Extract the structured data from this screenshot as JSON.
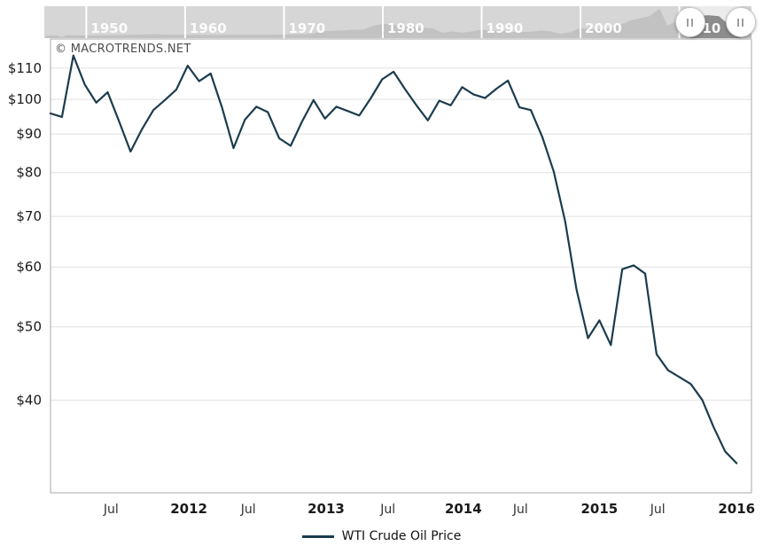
{
  "branding": {
    "copyright": "© MACROTRENDS.NET"
  },
  "legend": {
    "label": "WTI Crude Oil Price"
  },
  "colors": {
    "line": "#1c3c4e",
    "grid": "#e0e0e0",
    "plot_border": "#a8a8a8",
    "tick_label": "#1a1a1a",
    "secondary_tick_label": "#333333",
    "timeline_track": "#d6d6d6",
    "timeline_fill": "#c2c2c2",
    "timeline_selected_bg": "#ececec",
    "timeline_selected_fill": "#8c8c8c",
    "timeline_separator": "#ffffff",
    "timeline_label": "#ffffff",
    "handle_grip": "#9e9e9e"
  },
  "timeline": {
    "axis": {
      "start_year": 1945.75,
      "end_year": 2017.3
    },
    "decades": [
      {
        "label": "1950",
        "year": 1950
      },
      {
        "label": "1960",
        "year": 1960
      },
      {
        "label": "1970",
        "year": 1970
      },
      {
        "label": "1980",
        "year": 1980
      },
      {
        "label": "1990",
        "year": 1990
      },
      {
        "label": "2000",
        "year": 2000
      },
      {
        "label": "2010",
        "year": 2010
      }
    ],
    "selection": {
      "start_year": 2011.08,
      "end_year": 2016.2
    },
    "sparkline": [
      [
        1946,
        0.08
      ],
      [
        1947,
        0.09
      ],
      [
        1947.6,
        0.03
      ],
      [
        1948,
        0.1
      ],
      [
        1949,
        0.09
      ],
      [
        1950,
        0.09
      ],
      [
        1952,
        0.1
      ],
      [
        1954,
        0.11
      ],
      [
        1957,
        0.13
      ],
      [
        1959,
        0.11
      ],
      [
        1962,
        0.11
      ],
      [
        1965,
        0.11
      ],
      [
        1968,
        0.11
      ],
      [
        1970,
        0.12
      ],
      [
        1972,
        0.13
      ],
      [
        1973,
        0.16
      ],
      [
        1974,
        0.23
      ],
      [
        1975,
        0.24
      ],
      [
        1976,
        0.26
      ],
      [
        1977,
        0.28
      ],
      [
        1978,
        0.28
      ],
      [
        1979,
        0.4
      ],
      [
        1980,
        0.48
      ],
      [
        1981,
        0.45
      ],
      [
        1982,
        0.4
      ],
      [
        1983,
        0.36
      ],
      [
        1984,
        0.34
      ],
      [
        1985,
        0.33
      ],
      [
        1986,
        0.18
      ],
      [
        1987,
        0.22
      ],
      [
        1988,
        0.18
      ],
      [
        1989,
        0.22
      ],
      [
        1990,
        0.28
      ],
      [
        1991,
        0.24
      ],
      [
        1992,
        0.24
      ],
      [
        1993,
        0.21
      ],
      [
        1994,
        0.2
      ],
      [
        1995,
        0.21
      ],
      [
        1996,
        0.25
      ],
      [
        1997,
        0.23
      ],
      [
        1998,
        0.14
      ],
      [
        1999,
        0.2
      ],
      [
        2000,
        0.34
      ],
      [
        2001,
        0.29
      ],
      [
        2002,
        0.29
      ],
      [
        2003,
        0.34
      ],
      [
        2004,
        0.44
      ],
      [
        2005,
        0.58
      ],
      [
        2006,
        0.66
      ],
      [
        2007,
        0.73
      ],
      [
        2008,
        0.98
      ],
      [
        2008.8,
        0.42
      ],
      [
        2009,
        0.45
      ],
      [
        2010,
        0.62
      ],
      [
        2011,
        0.78
      ],
      [
        2012,
        0.74
      ],
      [
        2013,
        0.76
      ],
      [
        2014,
        0.73
      ],
      [
        2014.8,
        0.5
      ],
      [
        2015,
        0.4
      ],
      [
        2015.5,
        0.36
      ],
      [
        2016,
        0.25
      ],
      [
        2016.8,
        0.3
      ],
      [
        2017.3,
        0.31
      ]
    ]
  },
  "chart_data": {
    "type": "line",
    "title": "",
    "legend_position": "bottom",
    "grid": "horizontal-only",
    "y_axis": {
      "scale": "log",
      "unit": "USD per barrel",
      "range": [
        30.15,
        120.2
      ],
      "ticks": [
        {
          "label": "$110",
          "value": 110
        },
        {
          "label": "$100",
          "value": 100
        },
        {
          "label": "$90",
          "value": 90
        },
        {
          "label": "$80",
          "value": 80
        },
        {
          "label": "$70",
          "value": 70
        },
        {
          "label": "$60",
          "value": 60
        },
        {
          "label": "$50",
          "value": 50
        },
        {
          "label": "$40",
          "value": 40
        }
      ]
    },
    "x_axis": {
      "range_months": [
        0,
        61.3
      ],
      "ticks": [
        {
          "label": "Jul",
          "month": 5.3,
          "bold": false
        },
        {
          "label": "2012",
          "month": 12.1,
          "bold": true
        },
        {
          "label": "Jul",
          "month": 17.3,
          "bold": false
        },
        {
          "label": "2013",
          "month": 24.1,
          "bold": true
        },
        {
          "label": "Jul",
          "month": 29.5,
          "bold": false
        },
        {
          "label": "2014",
          "month": 36.1,
          "bold": true
        },
        {
          "label": "Jul",
          "month": 41.1,
          "bold": false
        },
        {
          "label": "2015",
          "month": 48.0,
          "bold": true
        },
        {
          "label": "Jul",
          "month": 53.1,
          "bold": false
        },
        {
          "label": "2016",
          "month": 60.0,
          "bold": true
        }
      ]
    },
    "series": [
      {
        "name": "WTI Crude Oil Price",
        "points": [
          [
            "2011-01",
            95.8
          ],
          [
            "2011-02",
            94.8
          ],
          [
            "2011-03",
            114.3
          ],
          [
            "2011-04",
            104.6
          ],
          [
            "2011-05",
            99.0
          ],
          [
            "2011-06",
            102.2
          ],
          [
            "2011-07",
            93.5
          ],
          [
            "2011-08",
            85.3
          ],
          [
            "2011-09",
            91.3
          ],
          [
            "2011-10",
            96.8
          ],
          [
            "2011-11",
            99.8
          ],
          [
            "2011-12",
            103.0
          ],
          [
            "2012-01",
            110.8
          ],
          [
            "2012-02",
            105.7
          ],
          [
            "2012-03",
            108.2
          ],
          [
            "2012-04",
            97.5
          ],
          [
            "2012-05",
            86.2
          ],
          [
            "2012-06",
            94.0
          ],
          [
            "2012-07",
            97.8
          ],
          [
            "2012-08",
            96.2
          ],
          [
            "2012-09",
            88.8
          ],
          [
            "2012-10",
            86.8
          ],
          [
            "2012-11",
            93.5
          ],
          [
            "2012-12",
            99.8
          ],
          [
            "2013-01",
            94.3
          ],
          [
            "2013-02",
            97.8
          ],
          [
            "2013-03",
            96.5
          ],
          [
            "2013-04",
            95.2
          ],
          [
            "2013-05",
            100.3
          ],
          [
            "2013-06",
            106.3
          ],
          [
            "2013-07",
            108.8
          ],
          [
            "2013-08",
            103.2
          ],
          [
            "2013-09",
            98.2
          ],
          [
            "2013-10",
            93.8
          ],
          [
            "2013-11",
            99.6
          ],
          [
            "2013-12",
            98.2
          ],
          [
            "2014-01",
            103.8
          ],
          [
            "2014-02",
            101.5
          ],
          [
            "2014-03",
            100.4
          ],
          [
            "2014-04",
            103.3
          ],
          [
            "2014-05",
            105.9
          ],
          [
            "2014-06",
            97.6
          ],
          [
            "2014-07",
            96.8
          ],
          [
            "2014-08",
            89.2
          ],
          [
            "2014-09",
            80.3
          ],
          [
            "2014-10",
            69.0
          ],
          [
            "2014-11",
            56.0
          ],
          [
            "2014-12",
            48.3
          ],
          [
            "2015-01",
            51.0
          ],
          [
            "2015-02",
            47.3
          ],
          [
            "2015-03",
            59.6
          ],
          [
            "2015-04",
            60.3
          ],
          [
            "2015-05",
            58.8
          ],
          [
            "2015-06",
            46.0
          ],
          [
            "2015-07",
            43.8
          ],
          [
            "2015-08",
            42.9
          ],
          [
            "2015-09",
            42.0
          ],
          [
            "2015-10",
            40.0
          ],
          [
            "2015-11",
            36.8
          ],
          [
            "2015-12",
            34.2
          ],
          [
            "2016-01",
            33.0
          ]
        ]
      }
    ]
  }
}
